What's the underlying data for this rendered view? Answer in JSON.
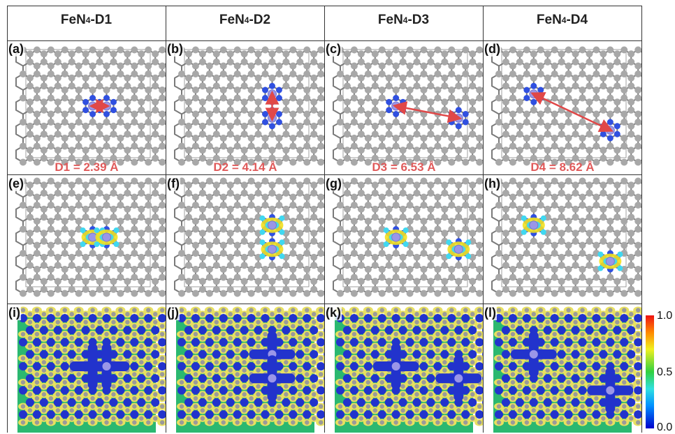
{
  "columns": [
    {
      "base": "FeN",
      "sub": "4",
      "suffix": "-D1"
    },
    {
      "base": "FeN",
      "sub": "4",
      "suffix": "-D2"
    },
    {
      "base": "FeN",
      "sub": "4",
      "suffix": "-D3"
    },
    {
      "base": "FeN",
      "sub": "4",
      "suffix": "-D4"
    }
  ],
  "panel_labels": [
    "(a)",
    "(b)",
    "(c)",
    "(d)",
    "(e)",
    "(f)",
    "(g)",
    "(h)",
    "(i)",
    "(j)",
    "(k)",
    "(l)"
  ],
  "distances": [
    "D1 = 2.39 Å",
    "D2 = 4.14 Å",
    "D3 = 6.53 Å",
    "D4 = 8.62 Å"
  ],
  "colorbar": {
    "max": "1.0",
    "mid": "0.5",
    "min": "0.0"
  },
  "colors": {
    "carbon": "#a8a8a8",
    "nitrogen": "#3050e0",
    "iron": "#9a96e8",
    "arrow": "#e04848",
    "distance_text": "#e05a5a",
    "isosurface_yellow": "#f2e020",
    "isosurface_cyan": "#40d8f0",
    "elf_background": "#2bb870",
    "elf_low": "#2233cc"
  },
  "defect_sites": [
    {
      "col": 0,
      "fe": [
        [
          5,
          4
        ],
        [
          6,
          4
        ]
      ]
    },
    {
      "col": 1,
      "fe": [
        [
          6,
          3
        ],
        [
          6,
          5
        ]
      ]
    },
    {
      "col": 2,
      "fe": [
        [
          4,
          4
        ],
        [
          8,
          5
        ]
      ]
    },
    {
      "col": 3,
      "fe": [
        [
          2,
          3
        ],
        [
          8,
          6
        ]
      ]
    }
  ]
}
